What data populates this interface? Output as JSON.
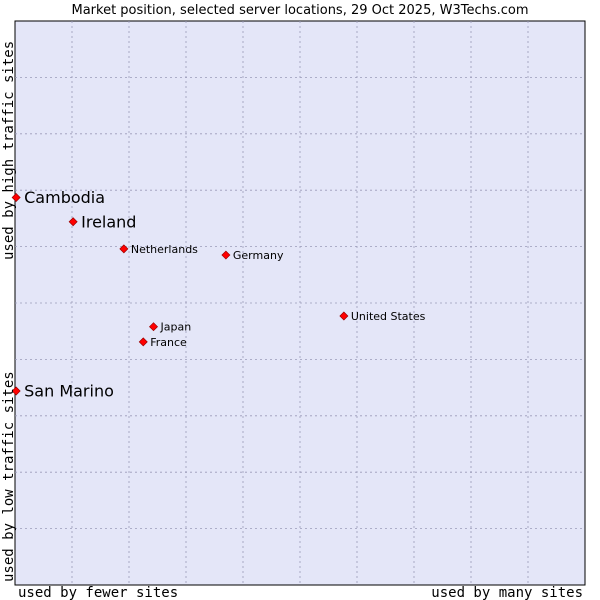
{
  "chart_data": {
    "type": "scatter",
    "title": "Market position, selected server locations, 29 Oct 2025, W3Techs.com",
    "xlabel_left": "used by fewer sites",
    "xlabel_right": "used by many sites",
    "ylabel_bottom": "used by low traffic sites",
    "ylabel_top": "used by high traffic sites",
    "xlim": [
      0,
      100
    ],
    "ylim": [
      0,
      100
    ],
    "grid": true,
    "colors": {
      "plot_background": "#e4e6f8",
      "grid": "#9a9ab8",
      "marker": "#ff0000",
      "marker_edge": "#990000",
      "text": "#000000"
    },
    "points": [
      {
        "name": "Cambodia",
        "x": 0.2,
        "y": 68.7,
        "highlight": true
      },
      {
        "name": "Ireland",
        "x": 10.2,
        "y": 64.4,
        "highlight": true
      },
      {
        "name": "San Marino",
        "x": 0.2,
        "y": 34.4,
        "highlight": true
      },
      {
        "name": "Netherlands",
        "x": 19.1,
        "y": 59.6,
        "highlight": false
      },
      {
        "name": "Germany",
        "x": 37.0,
        "y": 58.5,
        "highlight": false
      },
      {
        "name": "United States",
        "x": 57.7,
        "y": 47.7,
        "highlight": false
      },
      {
        "name": "Japan",
        "x": 24.3,
        "y": 45.8,
        "highlight": false
      },
      {
        "name": "France",
        "x": 22.5,
        "y": 43.1,
        "highlight": false
      }
    ]
  }
}
